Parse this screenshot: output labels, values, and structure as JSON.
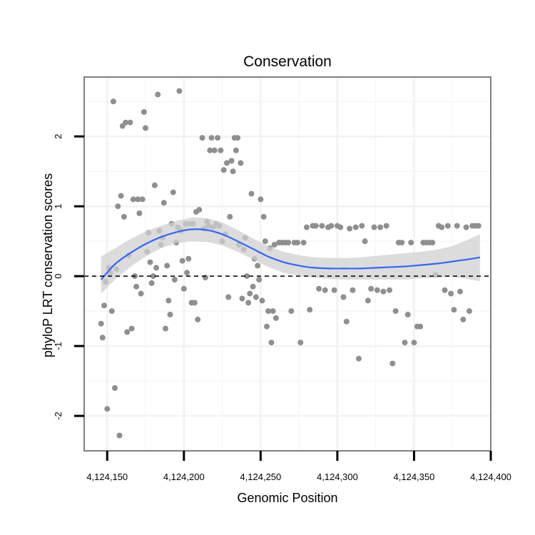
{
  "chart_data": {
    "type": "scatter",
    "title": "Conservation",
    "xlabel": "Genomic Position",
    "ylabel": "phyloP LRT conservation scores",
    "xlim": [
      4124135,
      4124400
    ],
    "ylim": [
      -2.5,
      2.85
    ],
    "x_ticks": [
      4124150,
      4124200,
      4124250,
      4124300,
      4124350,
      4124400
    ],
    "x_tick_labels": [
      "4,124,150",
      "4,124,200",
      "4,124,250",
      "4,124,300",
      "4,124,350",
      "4,124,400"
    ],
    "y_ticks": [
      -2,
      -1,
      0,
      1,
      2
    ],
    "y_tick_labels": [
      "-2",
      "-1",
      "0",
      "1",
      "2"
    ],
    "reference_line": {
      "y": 0,
      "style": "dashed"
    },
    "grid": true,
    "colors": {
      "points": "#8f8f8f",
      "smooth_line": "#3366ff",
      "confidence_band": "#d0d0d0",
      "panel_border": "#7f7f7f",
      "grid": "#f2f2f2"
    },
    "series": [
      {
        "name": "scores",
        "points": [
          [
            4124146,
            -0.68
          ],
          [
            4124147,
            -0.88
          ],
          [
            4124148,
            -0.42
          ],
          [
            4124149,
            -0.08
          ],
          [
            4124150,
            -1.9
          ],
          [
            4124151,
            0.12
          ],
          [
            4124152,
            0.05
          ],
          [
            4124153,
            -0.5
          ],
          [
            4124154,
            2.5
          ],
          [
            4124155,
            -1.6
          ],
          [
            4124156,
            0.1
          ],
          [
            4124157,
            1.0
          ],
          [
            4124158,
            -2.28
          ],
          [
            4124159,
            1.15
          ],
          [
            4124160,
            2.15
          ],
          [
            4124161,
            0.85
          ],
          [
            4124162,
            2.2
          ],
          [
            4124163,
            -0.8
          ],
          [
            4124164,
            0.3
          ],
          [
            4124165,
            2.2
          ],
          [
            4124166,
            -0.75
          ],
          [
            4124167,
            1.1
          ],
          [
            4124168,
            0.0
          ],
          [
            4124169,
            -0.15
          ],
          [
            4124170,
            1.1
          ],
          [
            4124171,
            0.9
          ],
          [
            4124172,
            -0.25
          ],
          [
            4124173,
            1.1
          ],
          [
            4124174,
            2.35
          ],
          [
            4124175,
            2.12
          ],
          [
            4124176,
            0.35
          ],
          [
            4124177,
            0.62
          ],
          [
            4124178,
            0.2
          ],
          [
            4124179,
            -0.1
          ],
          [
            4124180,
            0.0
          ],
          [
            4124181,
            1.3
          ],
          [
            4124182,
            0.12
          ],
          [
            4124183,
            2.6
          ],
          [
            4124184,
            0.65
          ],
          [
            4124185,
            0.45
          ],
          [
            4124186,
            0.55
          ],
          [
            4124187,
            1.05
          ],
          [
            4124188,
            -0.75
          ],
          [
            4124189,
            0.15
          ],
          [
            4124190,
            -0.35
          ],
          [
            4124191,
            -0.55
          ],
          [
            4124192,
            0.75
          ],
          [
            4124193,
            1.2
          ],
          [
            4124194,
            -0.05
          ],
          [
            4124195,
            0.48
          ],
          [
            4124196,
            0.7
          ],
          [
            4124197,
            2.65
          ],
          [
            4124198,
            0.65
          ],
          [
            4124199,
            0.22
          ],
          [
            4124200,
            -0.18
          ],
          [
            4124201,
            0.75
          ],
          [
            4124202,
            0.05
          ],
          [
            4124203,
            0.25
          ],
          [
            4124204,
            0.75
          ],
          [
            4124205,
            -0.38
          ],
          [
            4124206,
            0.75
          ],
          [
            4124207,
            -0.38
          ],
          [
            4124208,
            0.92
          ],
          [
            4124209,
            -0.62
          ],
          [
            4124210,
            0.95
          ],
          [
            4124212,
            1.98
          ],
          [
            4124213,
            0.68
          ],
          [
            4124214,
            -0.02
          ],
          [
            4124215,
            0.78
          ],
          [
            4124216,
            0.72
          ],
          [
            4124217,
            1.8
          ],
          [
            4124218,
            1.98
          ],
          [
            4124219,
            0.7
          ],
          [
            4124220,
            1.8
          ],
          [
            4124221,
            0.75
          ],
          [
            4124222,
            1.98
          ],
          [
            4124223,
            0.72
          ],
          [
            4124224,
            1.8
          ],
          [
            4124225,
            0.5
          ],
          [
            4124226,
            1.52
          ],
          [
            4124227,
            0.6
          ],
          [
            4124228,
            1.62
          ],
          [
            4124229,
            -0.3
          ],
          [
            4124230,
            0.85
          ],
          [
            4124231,
            1.65
          ],
          [
            4124232,
            1.5
          ],
          [
            4124233,
            1.98
          ],
          [
            4124234,
            1.8
          ],
          [
            4124235,
            1.98
          ],
          [
            4124236,
            0.45
          ],
          [
            4124237,
            1.62
          ],
          [
            4124238,
            -0.32
          ],
          [
            4124239,
            0.38
          ],
          [
            4124240,
            0.55
          ],
          [
            4124241,
            0.0
          ],
          [
            4124242,
            -0.38
          ],
          [
            4124243,
            -0.25
          ],
          [
            4124244,
            1.18
          ],
          [
            4124245,
            -0.15
          ],
          [
            4124246,
            0.25
          ],
          [
            4124247,
            -0.3
          ],
          [
            4124248,
            0.15
          ],
          [
            4124249,
            -0.05
          ],
          [
            4124250,
            1.1
          ],
          [
            4124251,
            -0.35
          ],
          [
            4124252,
            0.85
          ],
          [
            4124253,
            0.5
          ],
          [
            4124254,
            -0.72
          ],
          [
            4124255,
            -0.5
          ],
          [
            4124256,
            0.4
          ],
          [
            4124257,
            -0.95
          ],
          [
            4124258,
            -0.5
          ],
          [
            4124259,
            0.45
          ],
          [
            4124260,
            -0.6
          ],
          [
            4124262,
            0.48
          ],
          [
            4124264,
            0.48
          ],
          [
            4124266,
            0.48
          ],
          [
            4124268,
            0.48
          ],
          [
            4124270,
            -0.5
          ],
          [
            4124272,
            0.48
          ],
          [
            4124274,
            0.48
          ],
          [
            4124276,
            -0.95
          ],
          [
            4124278,
            0.48
          ],
          [
            4124280,
            0.7
          ],
          [
            4124282,
            -0.48
          ],
          [
            4124284,
            0.72
          ],
          [
            4124286,
            0.72
          ],
          [
            4124288,
            -0.18
          ],
          [
            4124290,
            0.72
          ],
          [
            4124292,
            -0.2
          ],
          [
            4124294,
            0.7
          ],
          [
            4124296,
            0.72
          ],
          [
            4124298,
            -0.2
          ],
          [
            4124300,
            0.72
          ],
          [
            4124302,
            0.7
          ],
          [
            4124304,
            -0.3
          ],
          [
            4124306,
            -0.65
          ],
          [
            4124308,
            0.68
          ],
          [
            4124310,
            -0.2
          ],
          [
            4124312,
            0.7
          ],
          [
            4124314,
            -1.18
          ],
          [
            4124316,
            0.72
          ],
          [
            4124318,
            0.5
          ],
          [
            4124320,
            -0.35
          ],
          [
            4124322,
            -0.18
          ],
          [
            4124324,
            0.7
          ],
          [
            4124326,
            -0.2
          ],
          [
            4124328,
            0.7
          ],
          [
            4124330,
            -0.22
          ],
          [
            4124332,
            0.72
          ],
          [
            4124334,
            -0.2
          ],
          [
            4124336,
            -1.25
          ],
          [
            4124338,
            -0.5
          ],
          [
            4124340,
            0.48
          ],
          [
            4124342,
            0.48
          ],
          [
            4124344,
            -0.95
          ],
          [
            4124346,
            -0.55
          ],
          [
            4124348,
            0.48
          ],
          [
            4124350,
            -0.95
          ],
          [
            4124352,
            -0.72
          ],
          [
            4124354,
            -0.72
          ],
          [
            4124356,
            0.48
          ],
          [
            4124358,
            0.48
          ],
          [
            4124360,
            0.48
          ],
          [
            4124362,
            0.48
          ],
          [
            4124364,
            0.02
          ],
          [
            4124366,
            0.72
          ],
          [
            4124368,
            0.7
          ],
          [
            4124370,
            -0.2
          ],
          [
            4124372,
            0.72
          ],
          [
            4124374,
            -0.25
          ],
          [
            4124376,
            -0.48
          ],
          [
            4124378,
            0.72
          ],
          [
            4124380,
            -0.22
          ],
          [
            4124382,
            -0.62
          ],
          [
            4124384,
            0.7
          ],
          [
            4124386,
            -0.5
          ],
          [
            4124388,
            0.72
          ],
          [
            4124390,
            0.72
          ],
          [
            4124392,
            0.72
          ]
        ]
      }
    ],
    "smooth": {
      "method": "loess",
      "x": [
        4124146,
        4124155,
        4124165,
        4124175,
        4124185,
        4124195,
        4124205,
        4124215,
        4124225,
        4124235,
        4124245,
        4124255,
        4124265,
        4124275,
        4124285,
        4124295,
        4124305,
        4124315,
        4124325,
        4124335,
        4124345,
        4124355,
        4124365,
        4124375,
        4124385,
        4124393
      ],
      "y": [
        -0.05,
        0.17,
        0.33,
        0.46,
        0.56,
        0.63,
        0.67,
        0.66,
        0.6,
        0.5,
        0.39,
        0.28,
        0.2,
        0.15,
        0.12,
        0.11,
        0.11,
        0.11,
        0.12,
        0.13,
        0.14,
        0.16,
        0.18,
        0.21,
        0.24,
        0.27
      ],
      "lower": [
        -0.25,
        -0.05,
        0.13,
        0.28,
        0.4,
        0.47,
        0.5,
        0.49,
        0.44,
        0.35,
        0.24,
        0.13,
        0.05,
        0.01,
        -0.02,
        -0.04,
        -0.05,
        -0.05,
        -0.05,
        -0.05,
        -0.05,
        -0.03,
        -0.02,
        -0.01,
        -0.04,
        -0.07
      ],
      "upper": [
        0.28,
        0.4,
        0.53,
        0.64,
        0.72,
        0.79,
        0.84,
        0.83,
        0.77,
        0.66,
        0.54,
        0.43,
        0.35,
        0.3,
        0.27,
        0.26,
        0.26,
        0.27,
        0.29,
        0.31,
        0.33,
        0.35,
        0.38,
        0.43,
        0.52,
        0.6
      ]
    }
  }
}
